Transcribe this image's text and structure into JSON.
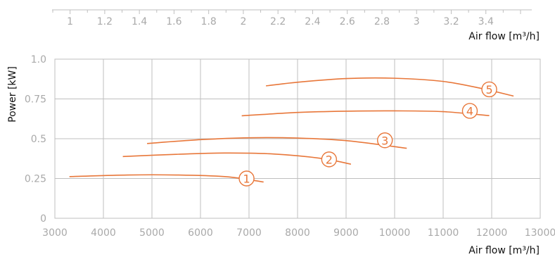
{
  "colors": {
    "curve": "#e8773a",
    "grid": "#bfbfbf",
    "tick_text": "#a9a9a9",
    "title_text": "#111111"
  },
  "chart_data": {
    "type": "line",
    "xlabel": "Air flow [m³/h]",
    "ylabel": "Power [kW]",
    "xlim": [
      3000,
      13000
    ],
    "ylim": [
      0,
      1.0
    ],
    "x_ticks": [
      "3000",
      "4000",
      "5000",
      "6000",
      "7000",
      "8000",
      "9000",
      "10000",
      "11000",
      "12000",
      "13000"
    ],
    "y_ticks": [
      "0",
      "0.25",
      "0.5",
      "0.75",
      "1.0"
    ],
    "grid": true,
    "secondary_x_axis": {
      "xlabel": "Air flow [m³/h]",
      "ticks": [
        "1",
        "1.2",
        "1.4",
        "1.6",
        "1.8",
        "2",
        "2.2",
        "2.4",
        "2.6",
        "2.8",
        "3",
        "3.2",
        "3.4"
      ]
    },
    "series": [
      {
        "name": "1",
        "x": [
          3300,
          4500,
          5500,
          6500,
          7000,
          7300
        ],
        "y": [
          0.262,
          0.272,
          0.272,
          0.262,
          0.242,
          0.228
        ]
      },
      {
        "name": "2",
        "x": [
          4400,
          5500,
          6500,
          7500,
          8500,
          9100
        ],
        "y": [
          0.388,
          0.402,
          0.41,
          0.404,
          0.376,
          0.34
        ]
      },
      {
        "name": "3",
        "x": [
          4900,
          6000,
          7000,
          8000,
          9000,
          10250
        ],
        "y": [
          0.47,
          0.494,
          0.506,
          0.504,
          0.488,
          0.44
        ]
      },
      {
        "name": "4",
        "x": [
          6850,
          8000,
          9000,
          10000,
          11000,
          11950
        ],
        "y": [
          0.644,
          0.665,
          0.673,
          0.675,
          0.67,
          0.645
        ]
      },
      {
        "name": "5",
        "x": [
          7350,
          8000,
          9000,
          10000,
          11000,
          11800,
          12450
        ],
        "y": [
          0.832,
          0.855,
          0.878,
          0.88,
          0.86,
          0.815,
          0.768
        ]
      }
    ],
    "curve_labels": [
      {
        "text": "1",
        "x": 6950,
        "y": 0.25
      },
      {
        "text": "2",
        "x": 8650,
        "y": 0.37
      },
      {
        "text": "3",
        "x": 9800,
        "y": 0.49
      },
      {
        "text": "4",
        "x": 11550,
        "y": 0.675
      },
      {
        "text": "5",
        "x": 11950,
        "y": 0.81
      }
    ]
  }
}
